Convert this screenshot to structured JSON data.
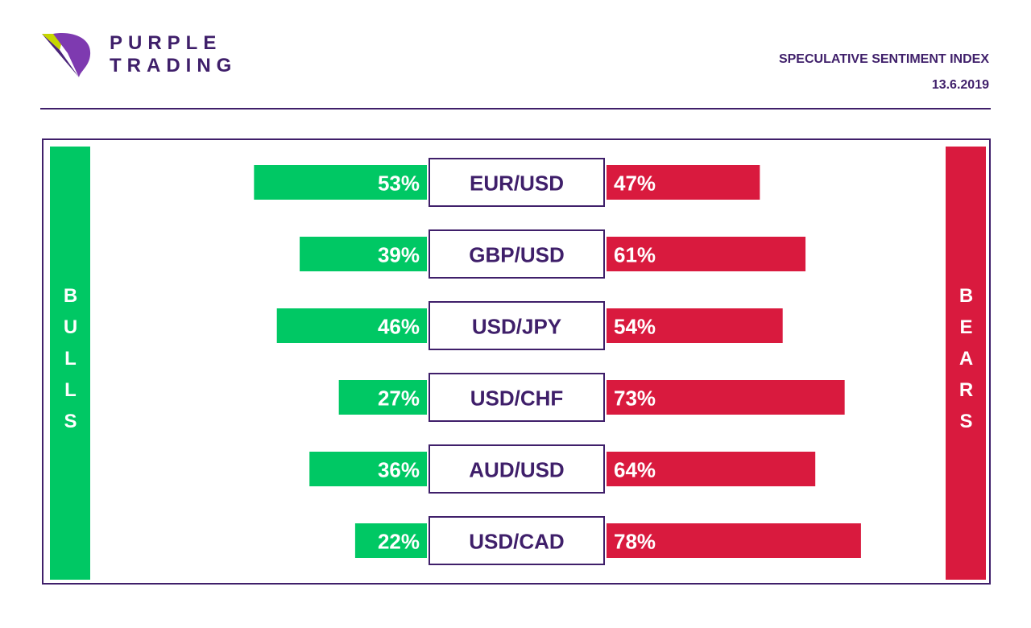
{
  "brand": {
    "line1": "PURPLE",
    "line2": "TRADING",
    "primary_color": "#3f1f6a",
    "accent_color": "#7e3ab0",
    "lime_color": "#c6d600",
    "icon": "purple-trading-logo-icon"
  },
  "header": {
    "title": "SPECULATIVE SENTIMENT INDEX",
    "date": "13.6.2019"
  },
  "side": {
    "bulls_label": "BULLS",
    "bears_label": "BEARS",
    "bulls_color": "#00c864",
    "bears_color": "#d91a3e"
  },
  "chart_data": {
    "type": "bar",
    "categories": [
      "EUR/USD",
      "GBP/USD",
      "USD/JPY",
      "USD/CHF",
      "AUD/USD",
      "USD/CAD"
    ],
    "series": [
      {
        "name": "BULLS",
        "values": [
          53,
          39,
          46,
          27,
          36,
          22
        ]
      },
      {
        "name": "BEARS",
        "values": [
          47,
          61,
          54,
          73,
          64,
          78
        ]
      }
    ],
    "value_suffix": "%",
    "xlim": [
      0,
      100
    ]
  }
}
